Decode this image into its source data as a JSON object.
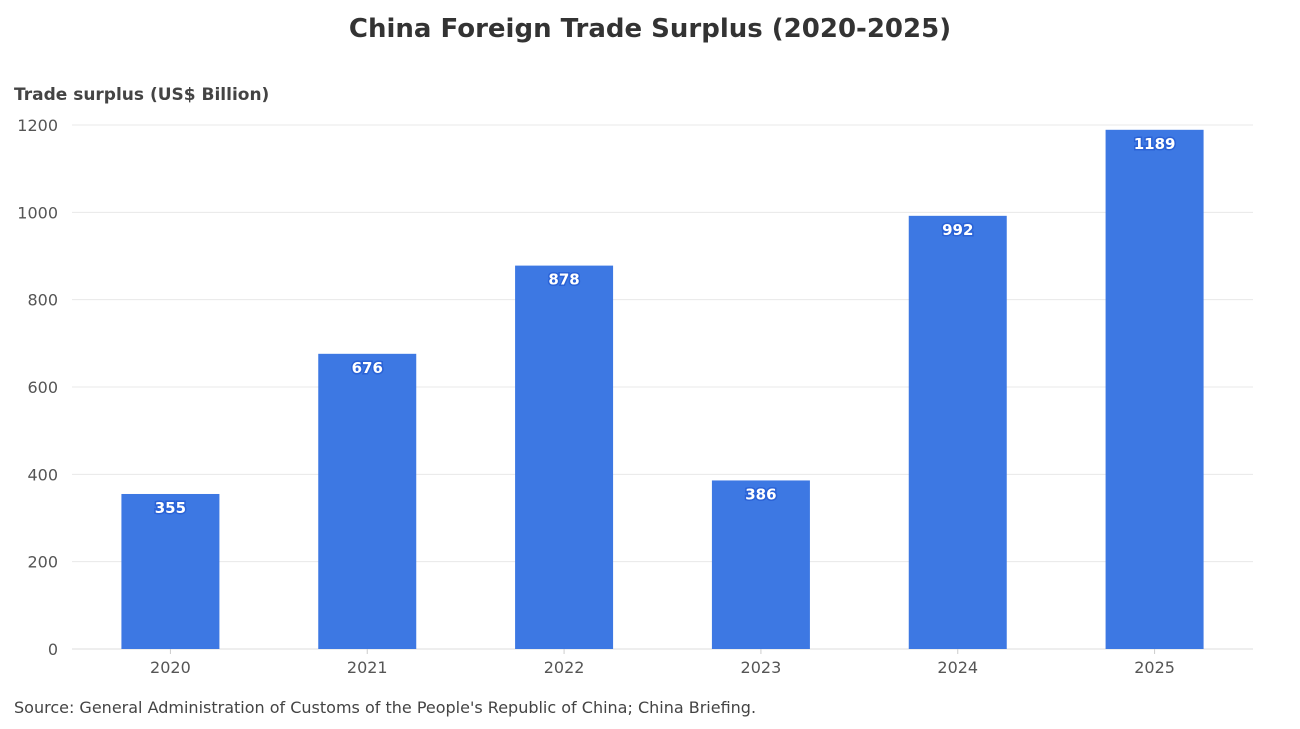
{
  "chart_data": {
    "type": "bar",
    "title": "China Foreign Trade Surplus (2020-2025)",
    "ylabel": "Trade surplus (US$ Billion)",
    "xlabel": "",
    "categories": [
      "2020",
      "2021",
      "2022",
      "2023",
      "2024",
      "2025"
    ],
    "values": [
      355,
      676,
      878,
      386,
      992,
      1189
    ],
    "ylim": [
      0,
      1200
    ],
    "yticks": [
      0,
      200,
      400,
      600,
      800,
      1000,
      1200
    ],
    "grid": true,
    "bar_color": "#3d78e3",
    "source": "Source: General Administration of Customs of the People's Republic of China; China Briefing."
  }
}
